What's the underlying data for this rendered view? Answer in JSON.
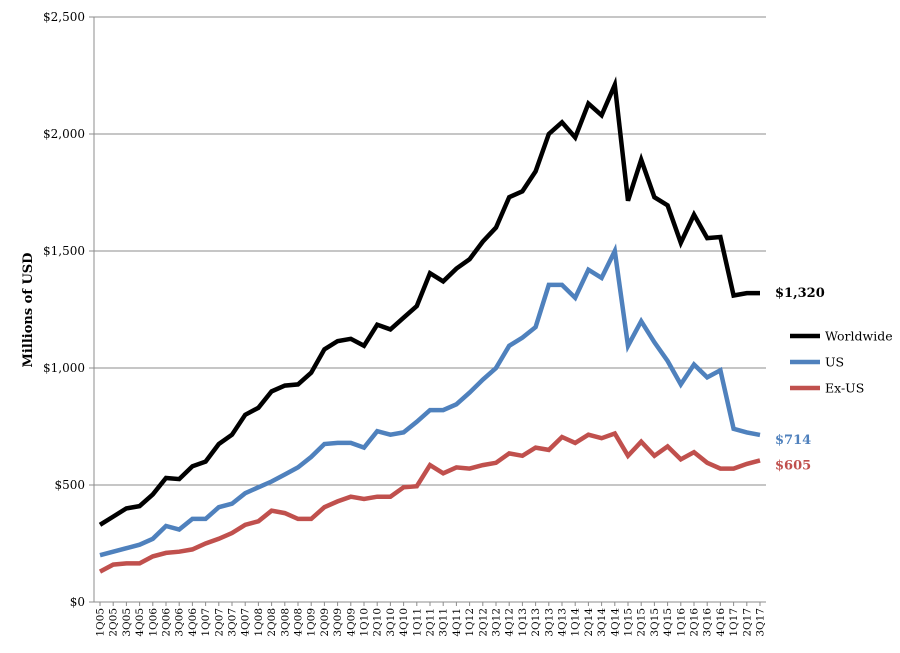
{
  "chart_data": {
    "type": "line",
    "ylabel": "Millions of USD",
    "ylim": [
      0,
      2500
    ],
    "y_tick_values": [
      0,
      500,
      1000,
      1500,
      2000,
      2500
    ],
    "y_tick_labels": [
      "$0",
      "$500",
      "$1,000",
      "$1,500",
      "$2,000",
      "$2,500"
    ],
    "grid": "horizontal",
    "legend_position": "right",
    "categories": [
      "1Q05",
      "2Q05",
      "3Q05",
      "4Q05",
      "1Q06",
      "2Q06",
      "3Q06",
      "4Q06",
      "1Q07",
      "2Q07",
      "3Q07",
      "4Q07",
      "1Q08",
      "2Q08",
      "3Q08",
      "4Q08",
      "1Q09",
      "2Q09",
      "3Q09",
      "4Q09",
      "1Q10",
      "2Q10",
      "3Q10",
      "4Q10",
      "1Q11",
      "2Q11",
      "3Q11",
      "4Q11",
      "1Q12",
      "2Q12",
      "3Q12",
      "4Q12",
      "1Q13",
      "2Q13",
      "3Q13",
      "4Q13",
      "1Q14",
      "2Q14",
      "3Q14",
      "4Q14",
      "1Q15",
      "2Q15",
      "3Q15",
      "4Q15",
      "1Q16",
      "2Q16",
      "3Q16",
      "4Q16",
      "1Q17",
      "2Q17",
      "3Q17"
    ],
    "series": [
      {
        "name": "Worldwide",
        "color": "#000000",
        "end_label": "$1,320",
        "values": [
          330,
          365,
          400,
          410,
          460,
          530,
          525,
          580,
          600,
          675,
          715,
          800,
          830,
          900,
          925,
          930,
          980,
          1080,
          1115,
          1125,
          1095,
          1185,
          1165,
          1215,
          1265,
          1405,
          1370,
          1425,
          1465,
          1540,
          1600,
          1730,
          1755,
          1840,
          2000,
          2050,
          1985,
          2130,
          2080,
          2210,
          1715,
          1890,
          1730,
          1695,
          1535,
          1655,
          1555,
          1560,
          1310,
          1320,
          1320
        ]
      },
      {
        "name": "US",
        "color": "#4F81BD",
        "end_label": "$714",
        "values": [
          200,
          215,
          230,
          245,
          270,
          325,
          310,
          355,
          355,
          405,
          420,
          465,
          490,
          515,
          545,
          575,
          620,
          675,
          680,
          680,
          660,
          730,
          715,
          725,
          770,
          820,
          820,
          845,
          895,
          950,
          1000,
          1095,
          1130,
          1175,
          1355,
          1355,
          1300,
          1420,
          1385,
          1500,
          1095,
          1200,
          1110,
          1030,
          930,
          1015,
          960,
          990,
          740,
          725,
          714
        ]
      },
      {
        "name": "Ex-US",
        "color": "#C0504D",
        "end_label": "$605",
        "values": [
          130,
          160,
          165,
          165,
          195,
          210,
          215,
          225,
          250,
          270,
          295,
          330,
          345,
          390,
          380,
          355,
          355,
          405,
          430,
          450,
          440,
          450,
          450,
          490,
          495,
          585,
          550,
          575,
          570,
          585,
          595,
          635,
          625,
          660,
          650,
          705,
          680,
          715,
          700,
          720,
          625,
          685,
          625,
          665,
          610,
          640,
          595,
          570,
          570,
          590,
          605
        ]
      }
    ]
  }
}
